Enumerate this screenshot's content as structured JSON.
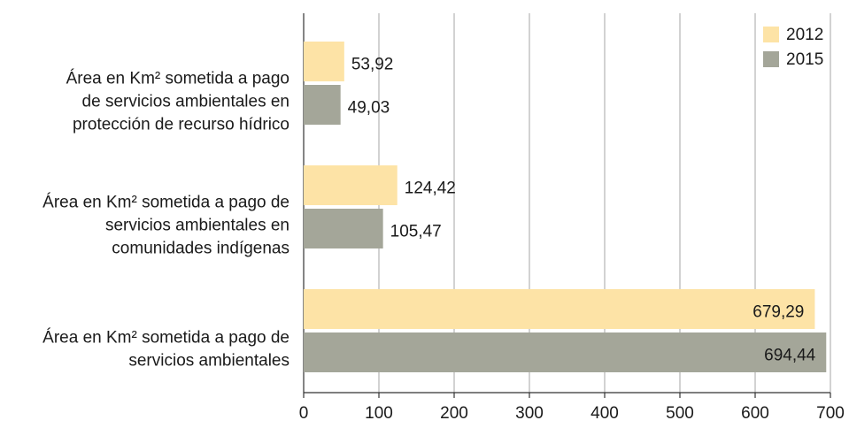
{
  "chart_data": {
    "type": "bar",
    "orientation": "horizontal",
    "categories": [
      [
        "Área en Km² sometida a pago",
        "de servicios ambientales en",
        "protección de recurso hídrico"
      ],
      [
        "Área en Km² sometida a pago de",
        "servicios ambientales en",
        "comunidades indígenas"
      ],
      [
        "Área en Km² sometida a pago de",
        "servicios ambientales"
      ]
    ],
    "series": [
      {
        "name": "2012",
        "color": "#fde3a6",
        "values": [
          53.92,
          124.42,
          679.29
        ],
        "value_labels": [
          "53,92",
          "124,42",
          "679,29"
        ]
      },
      {
        "name": "2015",
        "color": "#a4a699",
        "values": [
          49.03,
          105.47,
          694.44
        ],
        "value_labels": [
          "49,03",
          "105,47",
          "694,44"
        ]
      }
    ],
    "xlim": [
      0,
      700
    ],
    "xticks": [
      0,
      100,
      200,
      300,
      400,
      500,
      600,
      700
    ],
    "grid": true,
    "legend": "top-right"
  }
}
